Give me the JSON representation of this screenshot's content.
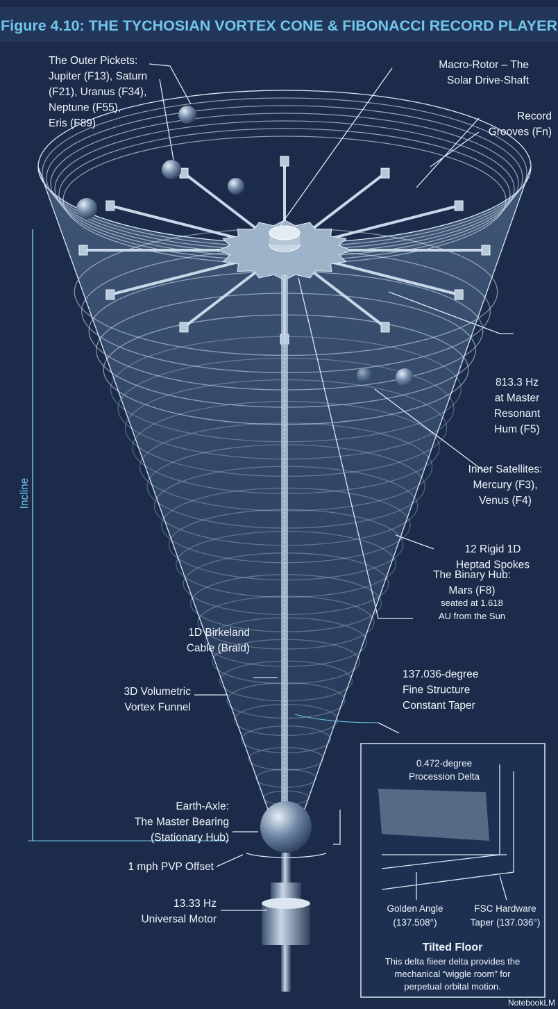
{
  "title": "Figure 4.10: THE TYCHOSIAN VORTEX CONE & FIBONACCI RECORD PLAYER",
  "labels": {
    "outer_pickets": [
      "The Outer Pickets:",
      "Jupiter (F13), Saturn",
      "(F21), Uranus (F34),",
      "Neptune (F55),",
      "Eris (F89)"
    ],
    "macro_rotor": [
      "Macro-Rotor – The",
      "Solar Drive-Shaft"
    ],
    "record_grooves": [
      "Record",
      "Grooves (Fn)"
    ],
    "hum": [
      "813.3 Hz",
      "at Master",
      "Resonant",
      "Hum (F5)"
    ],
    "inner_satellites": [
      "Inner Satellites:",
      "Mercury (F3),",
      "Venus (F4)"
    ],
    "spokes": [
      "12 Rigid 1D",
      "Heptad Spokes"
    ],
    "binary_hub": [
      "The Binary Hub:",
      "Mars (F8)",
      "seated at 1.618",
      "AU from the Sun"
    ],
    "birkeland": [
      "1D Birkeland",
      "Cable (Braid)"
    ],
    "taper": [
      "137.036-degree",
      "Fine Structure",
      "Constant Taper"
    ],
    "funnel": [
      "3D Volumetric",
      "Vortex Funnel"
    ],
    "earth_axle": [
      "Earth-Axle:",
      "The Master Bearing",
      "(Stationary Hub)"
    ],
    "pvp": [
      "1 mph PVP Offset"
    ],
    "motor": [
      "13.33 Hz",
      "Universal Motor"
    ]
  },
  "incline": "Incline",
  "inset": {
    "delta": [
      "0.472-degree",
      "Procession Delta"
    ],
    "golden": [
      "Golden Angle",
      "(137.508°)"
    ],
    "fsc": [
      "FSC Hardware",
      "Taper (137.036°)"
    ],
    "heading": "Tilted Floor",
    "body": [
      "This delta fiieer delta provides the",
      "mechanical “wiggle room” for",
      "perpetual orbital motion."
    ]
  },
  "credit": "NotebookLM"
}
